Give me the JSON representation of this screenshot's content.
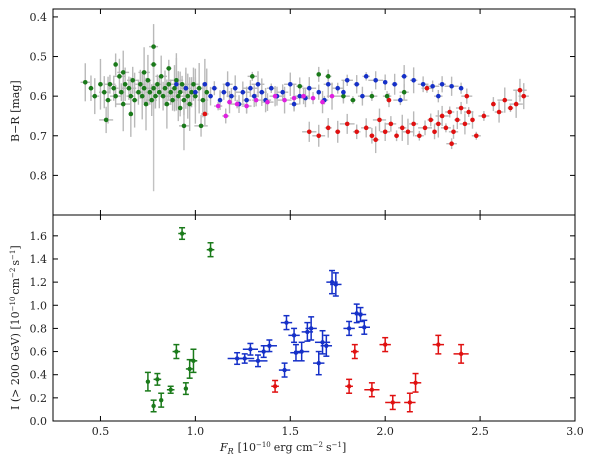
{
  "chart_data": [
    {
      "type": "scatter",
      "panel": "top",
      "title": "",
      "ylabel": "B−R [mag]",
      "xlim": [
        0.25,
        3.0
      ],
      "ylim": [
        0.9,
        0.38
      ],
      "y_inverted": true,
      "yticks": [
        0.4,
        0.5,
        0.6,
        0.7,
        0.8
      ],
      "ytick_labels": [
        "0.4",
        "0.5",
        "0.6",
        "0.7",
        "0.8"
      ],
      "series": [
        {
          "name": "green",
          "color": "#1a7a1a",
          "points": [
            [
              0.42,
              0.565
            ],
            [
              0.45,
              0.58
            ],
            [
              0.47,
              0.6
            ],
            [
              0.5,
              0.57
            ],
            [
              0.52,
              0.59
            ],
            [
              0.54,
              0.61
            ],
            [
              0.55,
              0.57
            ],
            [
              0.57,
              0.58
            ],
            [
              0.58,
              0.6
            ],
            [
              0.6,
              0.55
            ],
            [
              0.61,
              0.59
            ],
            [
              0.62,
              0.62
            ],
            [
              0.63,
              0.57
            ],
            [
              0.65,
              0.58
            ],
            [
              0.66,
              0.6
            ],
            [
              0.67,
              0.56
            ],
            [
              0.68,
              0.61
            ],
            [
              0.7,
              0.59
            ],
            [
              0.71,
              0.57
            ],
            [
              0.72,
              0.6
            ],
            [
              0.73,
              0.58
            ],
            [
              0.74,
              0.62
            ],
            [
              0.75,
              0.56
            ],
            [
              0.76,
              0.59
            ],
            [
              0.77,
              0.61
            ],
            [
              0.78,
              0.58
            ],
            [
              0.79,
              0.6
            ],
            [
              0.8,
              0.57
            ],
            [
              0.81,
              0.59
            ],
            [
              0.82,
              0.55
            ],
            [
              0.83,
              0.6
            ],
            [
              0.84,
              0.58
            ],
            [
              0.85,
              0.62
            ],
            [
              0.86,
              0.57
            ],
            [
              0.87,
              0.59
            ],
            [
              0.88,
              0.61
            ],
            [
              0.89,
              0.58
            ],
            [
              0.9,
              0.56
            ],
            [
              0.91,
              0.6
            ],
            [
              0.92,
              0.59
            ],
            [
              0.93,
              0.57
            ],
            [
              0.94,
              0.61
            ],
            [
              0.95,
              0.58
            ],
            [
              0.96,
              0.6
            ],
            [
              0.97,
              0.62
            ],
            [
              0.98,
              0.59
            ],
            [
              0.99,
              0.57
            ],
            [
              1.0,
              0.6
            ],
            [
              1.02,
              0.58
            ],
            [
              1.04,
              0.61
            ],
            [
              1.06,
              0.59
            ],
            [
              0.53,
              0.66
            ],
            [
              0.58,
              0.52
            ],
            [
              0.62,
              0.54
            ],
            [
              0.73,
              0.54
            ],
            [
              0.78,
              0.52
            ],
            [
              0.86,
              0.53
            ],
            [
              0.92,
              0.63
            ],
            [
              0.94,
              0.675
            ],
            [
              1.03,
              0.675
            ],
            [
              1.3,
              0.55
            ],
            [
              1.55,
              0.575
            ],
            [
              1.65,
              0.545
            ],
            [
              1.7,
              0.55
            ],
            [
              1.78,
              0.6
            ],
            [
              1.83,
              0.61
            ],
            [
              1.93,
              0.6
            ],
            [
              2.01,
              0.6
            ],
            [
              2.1,
              0.59
            ],
            [
              0.66,
              0.645
            ],
            [
              0.78,
              0.475
            ]
          ]
        },
        {
          "name": "blue",
          "color": "#1530c8",
          "points": [
            [
              0.9,
              0.57
            ],
            [
              0.95,
              0.58
            ],
            [
              1.0,
              0.59
            ],
            [
              1.05,
              0.57
            ],
            [
              1.08,
              0.6
            ],
            [
              1.1,
              0.58
            ],
            [
              1.13,
              0.61
            ],
            [
              1.15,
              0.59
            ],
            [
              1.17,
              0.57
            ],
            [
              1.19,
              0.6
            ],
            [
              1.21,
              0.58
            ],
            [
              1.23,
              0.62
            ],
            [
              1.25,
              0.59
            ],
            [
              1.27,
              0.61
            ],
            [
              1.29,
              0.58
            ],
            [
              1.31,
              0.6
            ],
            [
              1.33,
              0.57
            ],
            [
              1.35,
              0.59
            ],
            [
              1.37,
              0.61
            ],
            [
              1.4,
              0.58
            ],
            [
              1.43,
              0.6
            ],
            [
              1.46,
              0.59
            ],
            [
              1.5,
              0.57
            ],
            [
              1.55,
              0.6
            ],
            [
              1.6,
              0.58
            ],
            [
              1.65,
              0.59
            ],
            [
              1.7,
              0.57
            ],
            [
              1.75,
              0.58
            ],
            [
              1.8,
              0.56
            ],
            [
              1.85,
              0.57
            ],
            [
              1.9,
              0.55
            ],
            [
              1.95,
              0.56
            ],
            [
              2.0,
              0.565
            ],
            [
              2.05,
              0.57
            ],
            [
              2.1,
              0.55
            ],
            [
              2.15,
              0.56
            ],
            [
              2.2,
              0.57
            ],
            [
              2.25,
              0.575
            ],
            [
              2.3,
              0.57
            ],
            [
              2.35,
              0.575
            ],
            [
              2.4,
              0.58
            ],
            [
              1.52,
              0.62
            ],
            [
              1.58,
              0.605
            ],
            [
              1.68,
              0.61
            ],
            [
              1.78,
              0.59
            ],
            [
              1.88,
              0.6
            ],
            [
              2.08,
              0.61
            ],
            [
              2.28,
              0.6
            ]
          ]
        },
        {
          "name": "magenta",
          "color": "#e020e0",
          "points": [
            [
              1.12,
              0.625
            ],
            [
              1.18,
              0.615
            ],
            [
              1.22,
              0.62
            ],
            [
              1.27,
              0.625
            ],
            [
              1.32,
              0.61
            ],
            [
              1.38,
              0.615
            ],
            [
              1.42,
              0.6
            ],
            [
              1.47,
              0.61
            ],
            [
              1.52,
              0.605
            ],
            [
              1.57,
              0.6
            ],
            [
              1.62,
              0.605
            ],
            [
              1.67,
              0.615
            ],
            [
              1.72,
              0.6
            ],
            [
              1.16,
              0.65
            ]
          ]
        },
        {
          "name": "red",
          "color": "#e01010",
          "points": [
            [
              1.05,
              0.645
            ],
            [
              1.6,
              0.69
            ],
            [
              1.65,
              0.7
            ],
            [
              1.7,
              0.68
            ],
            [
              1.75,
              0.69
            ],
            [
              1.8,
              0.67
            ],
            [
              1.85,
              0.69
            ],
            [
              1.9,
              0.68
            ],
            [
              1.93,
              0.7
            ],
            [
              1.97,
              0.66
            ],
            [
              2.0,
              0.69
            ],
            [
              2.03,
              0.67
            ],
            [
              2.06,
              0.7
            ],
            [
              2.09,
              0.68
            ],
            [
              2.12,
              0.69
            ],
            [
              2.15,
              0.67
            ],
            [
              2.18,
              0.7
            ],
            [
              2.21,
              0.68
            ],
            [
              2.24,
              0.66
            ],
            [
              2.26,
              0.69
            ],
            [
              2.28,
              0.67
            ],
            [
              2.3,
              0.65
            ],
            [
              2.32,
              0.68
            ],
            [
              2.34,
              0.64
            ],
            [
              2.36,
              0.69
            ],
            [
              2.38,
              0.66
            ],
            [
              2.4,
              0.63
            ],
            [
              2.42,
              0.67
            ],
            [
              2.44,
              0.64
            ],
            [
              2.46,
              0.66
            ],
            [
              2.48,
              0.7
            ],
            [
              2.52,
              0.65
            ],
            [
              2.57,
              0.62
            ],
            [
              2.6,
              0.64
            ],
            [
              2.63,
              0.61
            ],
            [
              2.66,
              0.63
            ],
            [
              2.69,
              0.62
            ],
            [
              2.71,
              0.585
            ],
            [
              2.73,
              0.6
            ],
            [
              2.02,
              0.61
            ],
            [
              2.22,
              0.58
            ],
            [
              2.43,
              0.6
            ],
            [
              1.95,
              0.71
            ],
            [
              2.35,
              0.72
            ]
          ]
        }
      ]
    },
    {
      "type": "scatter",
      "panel": "bottom",
      "title": "",
      "xlabel": "F_R [10^-10 erg cm^-2 s^-1]",
      "xlabel_parts": {
        "symbol": "F",
        "subscript": "R",
        "open": "[10",
        "exp1": "−10",
        "unit1": "erg cm",
        "exp2": "−2",
        "unit2": "s",
        "exp3": "−1",
        "close": "]"
      },
      "ylabel": "I (> 200 GeV) [10^-10 cm^-2 s^-1]",
      "ylabel_parts": {
        "open": "I (> 200 GeV) [10",
        "exp1": "−10",
        "unit1": "cm",
        "exp2": "−2",
        "unit2": "s",
        "exp3": "−1",
        "close": "]"
      },
      "xlim": [
        0.25,
        3.0
      ],
      "ylim": [
        0.0,
        1.78
      ],
      "xticks": [
        0.5,
        1.0,
        1.5,
        2.0,
        2.5,
        3.0
      ],
      "xtick_labels": [
        "0.5",
        "1.0",
        "1.5",
        "2.0",
        "2.5",
        "3.0"
      ],
      "yticks": [
        0.0,
        0.2,
        0.4,
        0.6,
        0.8,
        1.0,
        1.2,
        1.4,
        1.6
      ],
      "ytick_labels": [
        "0.0",
        "0.2",
        "0.4",
        "0.6",
        "0.8",
        "1.0",
        "1.2",
        "1.4",
        "1.6"
      ],
      "series": [
        {
          "name": "green",
          "color": "#1a7a1a",
          "points": [
            [
              0.75,
              0.34,
              0.08,
              0.01
            ],
            [
              0.78,
              0.13,
              0.05,
              0.01
            ],
            [
              0.8,
              0.36,
              0.05,
              0.02
            ],
            [
              0.82,
              0.18,
              0.06,
              0.01
            ],
            [
              0.87,
              0.27,
              0.03,
              0.02
            ],
            [
              0.9,
              0.6,
              0.06,
              0.02
            ],
            [
              0.93,
              1.62,
              0.05,
              0.02
            ],
            [
              0.95,
              0.28,
              0.05,
              0.01
            ],
            [
              0.97,
              0.45,
              0.08,
              0.02
            ],
            [
              0.99,
              0.52,
              0.1,
              0.02
            ],
            [
              1.08,
              1.48,
              0.06,
              0.02
            ]
          ]
        },
        {
          "name": "blue",
          "color": "#1530c8",
          "points": [
            [
              1.22,
              0.54,
              0.05,
              0.05
            ],
            [
              1.26,
              0.54,
              0.04,
              0.05
            ],
            [
              1.29,
              0.62,
              0.05,
              0.04
            ],
            [
              1.33,
              0.52,
              0.05,
              0.05
            ],
            [
              1.36,
              0.6,
              0.05,
              0.03
            ],
            [
              1.39,
              0.65,
              0.05,
              0.04
            ],
            [
              1.47,
              0.44,
              0.06,
              0.03
            ],
            [
              1.48,
              0.85,
              0.06,
              0.03
            ],
            [
              1.52,
              0.74,
              0.06,
              0.03
            ],
            [
              1.53,
              0.59,
              0.07,
              0.03
            ],
            [
              1.56,
              0.6,
              0.08,
              0.04
            ],
            [
              1.59,
              0.77,
              0.08,
              0.03
            ],
            [
              1.61,
              0.8,
              0.1,
              0.03
            ],
            [
              1.65,
              0.5,
              0.1,
              0.03
            ],
            [
              1.67,
              0.68,
              0.1,
              0.04
            ],
            [
              1.69,
              0.65,
              0.09,
              0.03
            ],
            [
              1.72,
              1.2,
              0.1,
              0.03
            ],
            [
              1.74,
              1.18,
              0.1,
              0.03
            ],
            [
              1.81,
              0.8,
              0.06,
              0.03
            ],
            [
              1.85,
              0.93,
              0.08,
              0.03
            ],
            [
              1.87,
              0.92,
              0.06,
              0.03
            ],
            [
              1.89,
              0.81,
              0.06,
              0.03
            ]
          ]
        },
        {
          "name": "red",
          "color": "#e01010",
          "points": [
            [
              1.42,
              0.3,
              0.05,
              0.02
            ],
            [
              1.81,
              0.3,
              0.06,
              0.02
            ],
            [
              1.84,
              0.6,
              0.06,
              0.02
            ],
            [
              1.93,
              0.27,
              0.06,
              0.04
            ],
            [
              2.0,
              0.66,
              0.06,
              0.03
            ],
            [
              2.04,
              0.16,
              0.06,
              0.04
            ],
            [
              2.13,
              0.16,
              0.08,
              0.03
            ],
            [
              2.16,
              0.33,
              0.08,
              0.03
            ],
            [
              2.28,
              0.66,
              0.08,
              0.03
            ],
            [
              2.4,
              0.58,
              0.08,
              0.04
            ]
          ]
        }
      ]
    }
  ]
}
